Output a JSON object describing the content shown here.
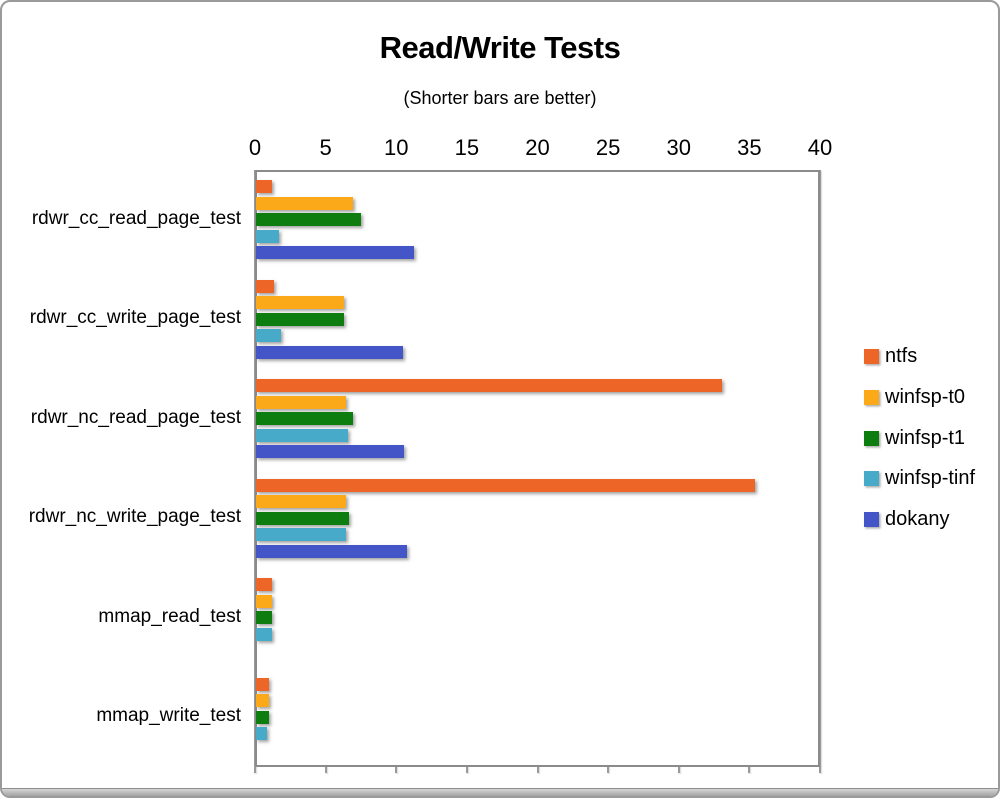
{
  "chart_data": {
    "type": "bar",
    "orientation": "horizontal",
    "title": "Read/Write Tests",
    "subtitle": "(Shorter bars are better)",
    "categories": [
      "rdwr_cc_read_page_test",
      "rdwr_cc_write_page_test",
      "rdwr_nc_read_page_test",
      "rdwr_nc_write_page_test",
      "mmap_read_test",
      "mmap_write_test"
    ],
    "series": [
      {
        "name": "ntfs",
        "color": "#ee6528",
        "values": [
          1.1,
          1.3,
          33.0,
          35.3,
          1.1,
          0.9
        ]
      },
      {
        "name": "winfsp-t0",
        "color": "#fba819",
        "values": [
          6.9,
          6.2,
          6.4,
          6.4,
          1.1,
          0.9
        ]
      },
      {
        "name": "winfsp-t1",
        "color": "#0e7d10",
        "values": [
          7.4,
          6.2,
          6.9,
          6.6,
          1.1,
          0.9
        ]
      },
      {
        "name": "winfsp-tinf",
        "color": "#46aac8",
        "values": [
          1.6,
          1.8,
          6.5,
          6.4,
          1.1,
          0.8
        ]
      },
      {
        "name": "dokany",
        "color": "#4456c7",
        "values": [
          11.2,
          10.4,
          10.5,
          10.7,
          0,
          0
        ]
      }
    ],
    "x_axis": {
      "min": 0,
      "max": 40,
      "tick_step": 5,
      "tick_labels": [
        "0",
        "5",
        "10",
        "15",
        "20",
        "25",
        "30",
        "35",
        "40"
      ]
    },
    "legend_position": "right",
    "grid": true,
    "note": "bars with value 0 are not drawn"
  }
}
